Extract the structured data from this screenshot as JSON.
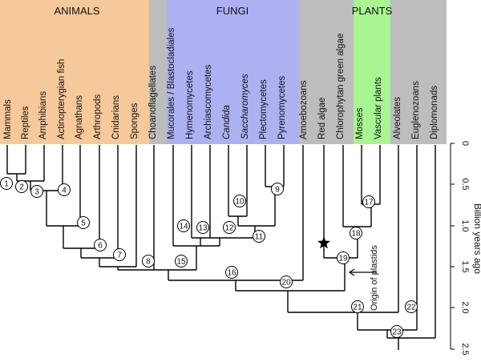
{
  "groups": [
    {
      "name": "ANIMALS",
      "color": "#f6c99b"
    },
    {
      "name": "FUNGI",
      "color": "#aeb0f2"
    },
    {
      "name": "",
      "color": "#bdbdbd"
    },
    {
      "name": "PLANTS",
      "color": "#a8f592"
    },
    {
      "name": "",
      "color": "#bdbdbd"
    }
  ],
  "taxa": [
    "Mammals",
    "Reptiles",
    "Amphibians",
    "Actinopterygian fish",
    "Agnathans",
    "Arthropods",
    "Cnidarians",
    "Sponges",
    "Choanoflagellates",
    "Mucorales / Blastocladiales",
    "Hymenomycetes",
    "Archiascomycetes",
    "Candida",
    "Saccharomyces",
    "Plectomycetes",
    "Pyrenomycetes",
    "Amoebozoans",
    "Red algae",
    "Chlorophytan green algae",
    "Mosses",
    "Vascular plants",
    "Alveolates",
    "Euglenozoans",
    "Diplomonads"
  ],
  "nodes": [
    "1",
    "2",
    "3",
    "4",
    "5",
    "6",
    "7",
    "8",
    "9",
    "10",
    "11",
    "12",
    "13",
    "14",
    "15",
    "16",
    "17",
    "18",
    "19",
    "20",
    "21",
    "22",
    "23"
  ],
  "axis": {
    "title": "Billion years ago",
    "ticks": [
      "0",
      "0.5",
      "1.0",
      "1.5",
      "2.0",
      "2.5"
    ],
    "range": [
      0,
      2.5
    ]
  },
  "annotation": "Origin of plastids",
  "marker_icon": "star-icon",
  "line_color": "#000000"
}
